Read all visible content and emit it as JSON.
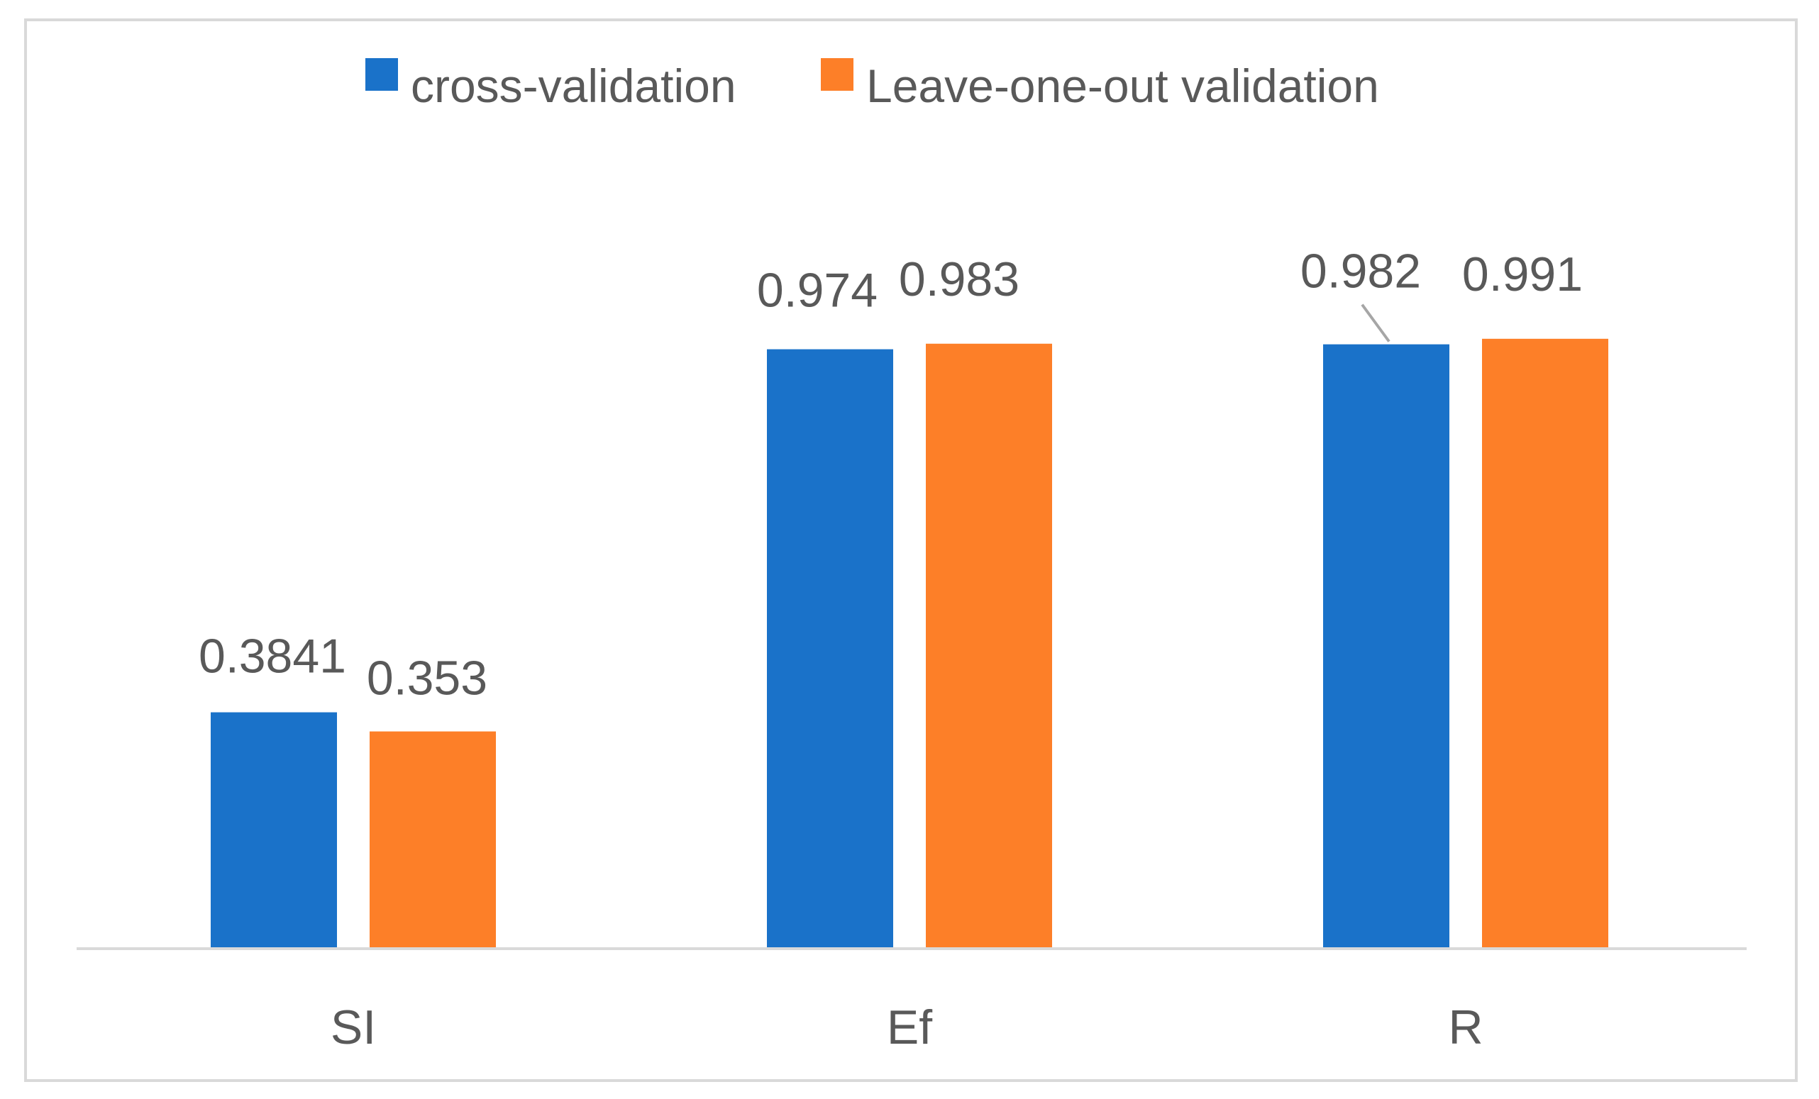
{
  "chart_data": {
    "type": "bar",
    "title": "",
    "xlabel": "",
    "ylabel": "",
    "categories": [
      "SI",
      "Ef",
      "R"
    ],
    "series": [
      {
        "name": "cross-validation",
        "color": "#1a72c9",
        "values": [
          0.3841,
          0.974,
          0.982
        ],
        "labels": [
          "0.3841",
          "0.974",
          "0.982"
        ]
      },
      {
        "name": "Leave-one-out validation",
        "color": "#fd7f28",
        "values": [
          0.353,
          0.983,
          0.991
        ],
        "labels": [
          "0.353",
          "0.983",
          "0.991"
        ]
      }
    ],
    "ylim": [
      0,
      1.25
    ],
    "grid": false,
    "legend_position": "top",
    "axis_color": "#d9d9d9",
    "text_color": "#595959",
    "leader_line_color": "#a6a6a6"
  }
}
